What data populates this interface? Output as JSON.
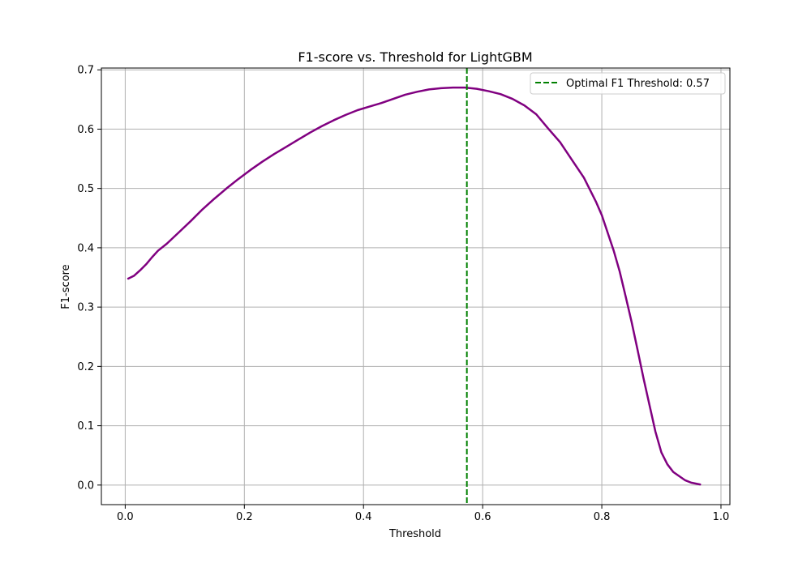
{
  "chart_data": {
    "type": "line",
    "title": "F1-score vs. Threshold for LightGBM",
    "xlabel": "Threshold",
    "ylabel": "F1-score",
    "xlim": [
      -0.04,
      1.015
    ],
    "ylim": [
      -0.033,
      0.703
    ],
    "x_ticks": [
      0.0,
      0.2,
      0.4,
      0.6,
      0.8,
      1.0
    ],
    "x_tick_labels": [
      "0.0",
      "0.2",
      "0.4",
      "0.6",
      "0.8",
      "1.0"
    ],
    "y_ticks": [
      0.0,
      0.1,
      0.2,
      0.3,
      0.4,
      0.5,
      0.6,
      0.7
    ],
    "y_tick_labels": [
      "0.0",
      "0.1",
      "0.2",
      "0.3",
      "0.4",
      "0.5",
      "0.6",
      "0.7"
    ],
    "grid": true,
    "legend_placement": "upper right",
    "series": [
      {
        "color": "#800080",
        "x": [
          0.005,
          0.015,
          0.025,
          0.035,
          0.045,
          0.055,
          0.07,
          0.09,
          0.11,
          0.13,
          0.15,
          0.17,
          0.19,
          0.21,
          0.23,
          0.25,
          0.27,
          0.29,
          0.31,
          0.33,
          0.35,
          0.37,
          0.39,
          0.41,
          0.43,
          0.45,
          0.47,
          0.49,
          0.51,
          0.53,
          0.55,
          0.57,
          0.59,
          0.61,
          0.63,
          0.65,
          0.67,
          0.69,
          0.71,
          0.73,
          0.75,
          0.77,
          0.79,
          0.8,
          0.81,
          0.82,
          0.83,
          0.84,
          0.85,
          0.86,
          0.87,
          0.88,
          0.89,
          0.9,
          0.91,
          0.92,
          0.93,
          0.94,
          0.95,
          0.965
        ],
        "y": [
          0.348,
          0.353,
          0.362,
          0.372,
          0.384,
          0.395,
          0.407,
          0.426,
          0.445,
          0.465,
          0.483,
          0.5,
          0.516,
          0.531,
          0.545,
          0.558,
          0.57,
          0.582,
          0.594,
          0.605,
          0.615,
          0.624,
          0.632,
          0.638,
          0.644,
          0.651,
          0.658,
          0.663,
          0.667,
          0.669,
          0.67,
          0.67,
          0.668,
          0.664,
          0.659,
          0.651,
          0.64,
          0.625,
          0.601,
          0.578,
          0.548,
          0.518,
          0.478,
          0.455,
          0.425,
          0.395,
          0.36,
          0.318,
          0.275,
          0.228,
          0.18,
          0.135,
          0.09,
          0.055,
          0.035,
          0.022,
          0.015,
          0.008,
          0.004,
          0.001
        ]
      }
    ],
    "vline": {
      "x": 0.5735,
      "color": "#008000",
      "style": "dashed",
      "label": "Optimal F1 Threshold: 0.57"
    }
  }
}
